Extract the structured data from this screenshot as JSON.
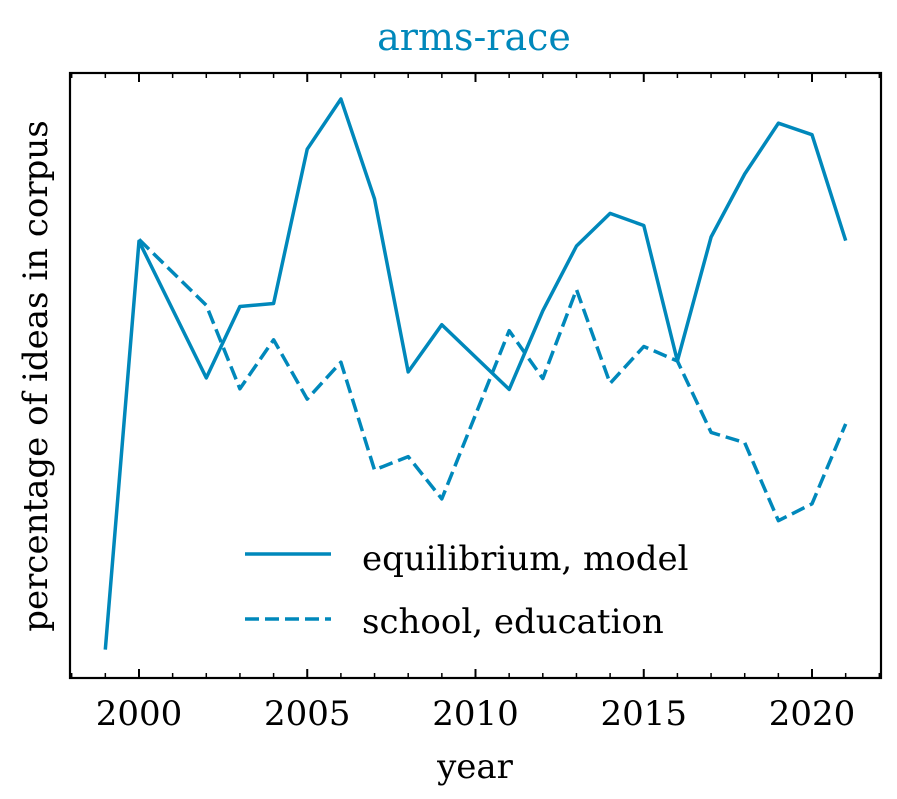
{
  "chart_data": {
    "type": "line",
    "title": "arms-race",
    "xlabel": "year",
    "ylabel": "percentage of ideas in corpus",
    "x": [
      1999,
      2000,
      2001,
      2002,
      2003,
      2004,
      2005,
      2006,
      2007,
      2008,
      2009,
      2010,
      2011,
      2012,
      2013,
      2014,
      2015,
      2016,
      2017,
      2018,
      2019,
      2020,
      2021
    ],
    "x_ticks": [
      2000,
      2005,
      2010,
      2015,
      2020
    ],
    "xlim": [
      1997.95,
      2022.05
    ],
    "ylim": [
      0,
      100
    ],
    "y_ticks_visible": false,
    "grid": false,
    "legend_position": "lower center",
    "series": [
      {
        "name": "equilibrium, model",
        "style": "solid",
        "values": [
          4.7,
          72.2,
          null,
          49.6,
          61.4,
          61.9,
          87.4,
          95.7,
          79.2,
          50.6,
          58.4,
          null,
          47.7,
          60.7,
          71.4,
          76.8,
          74.8,
          52.4,
          72.9,
          83.3,
          91.7,
          89.8,
          72.3
        ]
      },
      {
        "name": "school, education",
        "style": "dashed",
        "values": [
          null,
          72.5,
          null,
          61.6,
          47.8,
          55.9,
          46.1,
          52.2,
          34.4,
          36.6,
          29.6,
          null,
          57.4,
          49.5,
          64.2,
          48.7,
          54.8,
          52.4,
          40.6,
          38.9,
          26.0,
          28.8,
          42.0
        ]
      }
    ],
    "colors": {
      "line": "#0088bb",
      "axis": "#000000",
      "title": "#0088bb"
    }
  }
}
